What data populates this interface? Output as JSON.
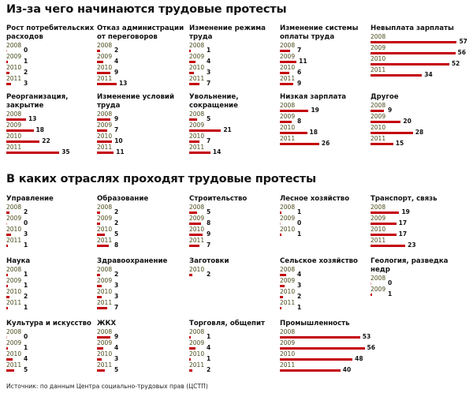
{
  "chart_data": [
    {
      "type": "bar",
      "title": "Из-за чего начинаются трудовые протесты",
      "groups": [
        {
          "name": "Рост потребительских расходов",
          "data": [
            {
              "year": "2008",
              "value": 0
            },
            {
              "year": "2009",
              "value": 1
            },
            {
              "year": "2010",
              "value": 2
            },
            {
              "year": "2011",
              "value": 3
            }
          ]
        },
        {
          "name": "Отказ администрации от переговоров",
          "data": [
            {
              "year": "2008",
              "value": 2
            },
            {
              "year": "2009",
              "value": 4
            },
            {
              "year": "2010",
              "value": 9
            },
            {
              "year": "2011",
              "value": 13
            }
          ]
        },
        {
          "name": "Изменение режима труда",
          "data": [
            {
              "year": "2008",
              "value": 1
            },
            {
              "year": "2009",
              "value": 4
            },
            {
              "year": "2010",
              "value": 3
            },
            {
              "year": "2011",
              "value": 7
            }
          ]
        },
        {
          "name": "Изменение системы оплаты труда",
          "data": [
            {
              "year": "2008",
              "value": 7
            },
            {
              "year": "2009",
              "value": 11
            },
            {
              "year": "2010",
              "value": 6
            },
            {
              "year": "2011",
              "value": 9
            }
          ]
        },
        {
          "name": "Невыплата зарплаты",
          "data": [
            {
              "year": "2008",
              "value": 57
            },
            {
              "year": "2009",
              "value": 56
            },
            {
              "year": "2010",
              "value": 52
            },
            {
              "year": "2011",
              "value": 34
            }
          ]
        },
        {
          "name": "Реорганизация, закрытие",
          "data": [
            {
              "year": "2008",
              "value": 13
            },
            {
              "year": "2009",
              "value": 18
            },
            {
              "year": "2010",
              "value": 22
            },
            {
              "year": "2011",
              "value": 35
            }
          ]
        },
        {
          "name": "Изменение условий труда",
          "data": [
            {
              "year": "2008",
              "value": 9
            },
            {
              "year": "2009",
              "value": 7
            },
            {
              "year": "2010",
              "value": 10
            },
            {
              "year": "2011",
              "value": 11
            }
          ]
        },
        {
          "name": "Увольнение, сокращение",
          "data": [
            {
              "year": "2008",
              "value": 5
            },
            {
              "year": "2009",
              "value": 21
            },
            {
              "year": "2010",
              "value": 7
            },
            {
              "year": "2011",
              "value": 14
            }
          ]
        },
        {
          "name": "Низкая зарплата",
          "data": [
            {
              "year": "2008",
              "value": 19
            },
            {
              "year": "2009",
              "value": 8
            },
            {
              "year": "2010",
              "value": 18
            },
            {
              "year": "2011",
              "value": 26
            }
          ]
        },
        {
          "name": "Другое",
          "data": [
            {
              "year": "2008",
              "value": 9
            },
            {
              "year": "2009",
              "value": 20
            },
            {
              "year": "2010",
              "value": 28
            },
            {
              "year": "2011",
              "value": 15
            }
          ]
        }
      ]
    },
    {
      "type": "bar",
      "title": "В каких отраслях проходят трудовые протесты",
      "groups": [
        {
          "name": "Управление",
          "data": [
            {
              "year": "2008",
              "value": 2
            },
            {
              "year": "2009",
              "value": 0
            },
            {
              "year": "2010",
              "value": 3
            },
            {
              "year": "2011",
              "value": 1
            }
          ]
        },
        {
          "name": "Образование",
          "data": [
            {
              "year": "2008",
              "value": 2
            },
            {
              "year": "2009",
              "value": 2
            },
            {
              "year": "2010",
              "value": 5
            },
            {
              "year": "2011",
              "value": 8
            }
          ]
        },
        {
          "name": "Строительство",
          "data": [
            {
              "year": "2008",
              "value": 5
            },
            {
              "year": "2009",
              "value": 8
            },
            {
              "year": "2010",
              "value": 9
            },
            {
              "year": "2011",
              "value": 7
            }
          ]
        },
        {
          "name": "Лесное хозяйство",
          "data": [
            {
              "year": "2008",
              "value": 1
            },
            {
              "year": "2009",
              "value": 0
            },
            {
              "year": "2010",
              "value": 1
            }
          ]
        },
        {
          "name": "Транспорт, связь",
          "data": [
            {
              "year": "2008",
              "value": 19
            },
            {
              "year": "2009",
              "value": 17
            },
            {
              "year": "2010",
              "value": 17
            },
            {
              "year": "2011",
              "value": 23
            }
          ]
        },
        {
          "name": "Наука",
          "data": [
            {
              "year": "2008",
              "value": 1
            },
            {
              "year": "2009",
              "value": 1
            },
            {
              "year": "2010",
              "value": 2
            },
            {
              "year": "2011",
              "value": 1
            }
          ]
        },
        {
          "name": "Здравоохранение",
          "data": [
            {
              "year": "2008",
              "value": 2
            },
            {
              "year": "2009",
              "value": 3
            },
            {
              "year": "2010",
              "value": 3
            },
            {
              "year": "2011",
              "value": 7
            }
          ]
        },
        {
          "name": "Заготовки",
          "data": [
            {
              "year": "2010",
              "value": 2
            }
          ]
        },
        {
          "name": "Сельское хозяйство",
          "data": [
            {
              "year": "2008",
              "value": 4
            },
            {
              "year": "2009",
              "value": 3
            },
            {
              "year": "2010",
              "value": 2
            },
            {
              "year": "2011",
              "value": 1
            }
          ]
        },
        {
          "name": "Геология, разведка недр",
          "data": [
            {
              "year": "2008",
              "value": 0
            },
            {
              "year": "2009",
              "value": 1
            }
          ]
        },
        {
          "name": "Культура и искусство",
          "data": [
            {
              "year": "2008",
              "value": 0
            },
            {
              "year": "2009",
              "value": 1
            },
            {
              "year": "2010",
              "value": 4
            },
            {
              "year": "2011",
              "value": 5
            }
          ]
        },
        {
          "name": "ЖКХ",
          "data": [
            {
              "year": "2008",
              "value": 9
            },
            {
              "year": "2009",
              "value": 4
            },
            {
              "year": "2010",
              "value": 3
            },
            {
              "year": "2011",
              "value": 5
            }
          ]
        },
        {
          "name": "Торговля, общепит",
          "data": [
            {
              "year": "2008",
              "value": 1
            },
            {
              "year": "2009",
              "value": 4
            },
            {
              "year": "2010",
              "value": 1
            },
            {
              "year": "2011",
              "value": 2
            }
          ]
        },
        {
          "name": "Промышленность",
          "data": [
            {
              "year": "2008",
              "value": 53
            },
            {
              "year": "2009",
              "value": 56
            },
            {
              "year": "2010",
              "value": 48
            },
            {
              "year": "2011",
              "value": 40
            }
          ]
        }
      ]
    }
  ],
  "colors": {
    "bar": "#c4000b",
    "year": "#4a4a1a"
  },
  "source": "Источник: по данным Центра социально-трудовых прав (ЦСТП)"
}
